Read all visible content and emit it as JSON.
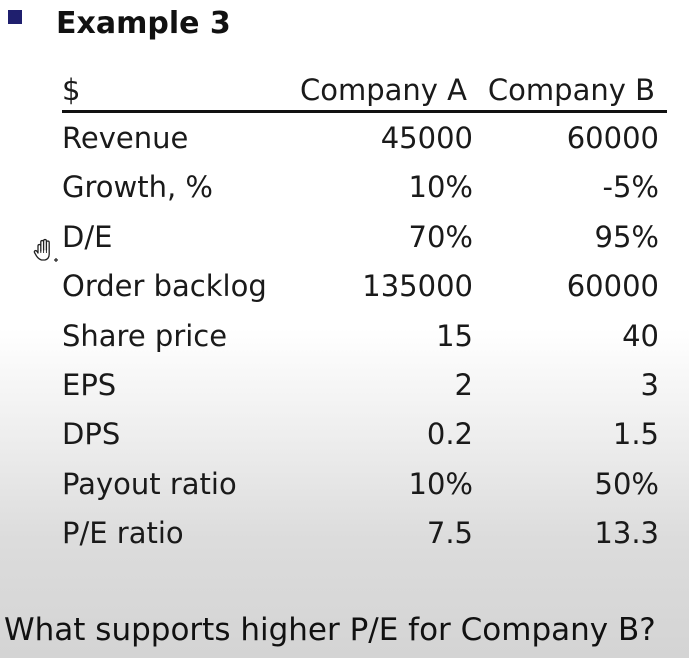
{
  "title": "Example 3",
  "table": {
    "headers": [
      "$",
      "Company A",
      "Company B"
    ],
    "rows": [
      {
        "label": "Revenue",
        "a": "45000",
        "b": "60000"
      },
      {
        "label": "Growth, %",
        "a": "10%",
        "b": "-5%"
      },
      {
        "label": "D/E",
        "a": "70%",
        "b": "95%"
      },
      {
        "label": "Order backlog",
        "a": "135000",
        "b": "60000"
      },
      {
        "label": "Share price",
        "a": "15",
        "b": "40"
      },
      {
        "label": "EPS",
        "a": "2",
        "b": "3"
      },
      {
        "label": "DPS",
        "a": "0.2",
        "b": "1.5"
      },
      {
        "label": "Payout ratio",
        "a": "10%",
        "b": "50%"
      },
      {
        "label": "P/E ratio",
        "a": "7.5",
        "b": "13.3"
      }
    ]
  },
  "question": "What supports higher P/E for Company B?",
  "cursor_icon": "hand-cursor-icon",
  "colors": {
    "bullet": "#1f1f6e",
    "text": "#1a1a1a"
  }
}
